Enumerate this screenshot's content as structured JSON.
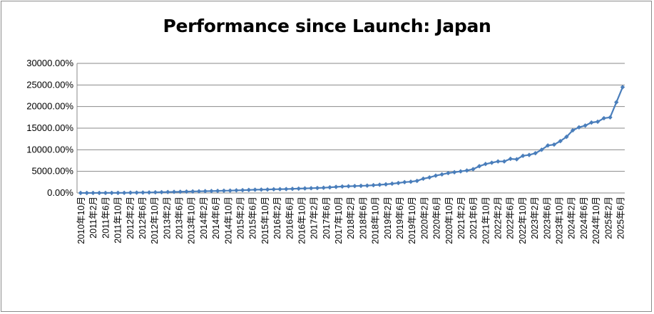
{
  "chart_data": {
    "type": "line",
    "title": "Performance since Launch: Japan",
    "xlabel": "",
    "ylabel": "",
    "ylim": [
      0,
      30000
    ],
    "y_unit": "%",
    "y_ticks": [
      "0.00%",
      "5000.00%",
      "10000.00%",
      "15000.00%",
      "20000.00%",
      "25000.00%",
      "30000.00%"
    ],
    "grid": true,
    "legend": "none",
    "series_color": "#4a7ebb",
    "x_ticks": [
      "2010年10月",
      "2011年2月",
      "2011年6月",
      "2011年10月",
      "2012年2月",
      "2012年6月",
      "2012年10月",
      "2013年2月",
      "2013年6月",
      "2013年10月",
      "2014年2月",
      "2014年6月",
      "2014年10月",
      "2015年2月",
      "2015年6月",
      "2015年10月",
      "2016年2月",
      "2016年6月",
      "2016年10月",
      "2017年2月",
      "2017年6月",
      "2017年10月",
      "2018年2月",
      "2018年6月",
      "2018年10月",
      "2019年2月",
      "2019年6月",
      "2019年10月",
      "2020年2月",
      "2020年6月",
      "2020年10月",
      "2021年2月",
      "2021年6月",
      "2021年10月",
      "2022年2月",
      "2022年6月",
      "2022年10月",
      "2023年2月",
      "2023年6月",
      "2023年10月",
      "2024年2月",
      "2024年6月",
      "2024年10月",
      "2025年2月",
      "2025年6月"
    ],
    "series": [
      {
        "values": [
          0,
          0,
          5,
          10,
          10,
          15,
          20,
          30,
          60,
          80,
          100,
          120,
          150,
          180,
          220,
          250,
          280,
          320,
          350,
          380,
          420,
          450,
          480,
          520,
          550,
          600,
          650,
          700,
          750,
          780,
          800,
          850,
          880,
          900,
          950,
          1000,
          1050,
          1100,
          1150,
          1200,
          1300,
          1400,
          1500,
          1550,
          1600,
          1650,
          1700,
          1800,
          1900,
          2000,
          2150,
          2300,
          2500,
          2600,
          2800,
          3300,
          3600,
          4000,
          4300,
          4600,
          4800,
          5000,
          5200,
          5500,
          6200,
          6700,
          7000,
          7300,
          7300,
          7900,
          7800,
          8600,
          8800,
          9200,
          10000,
          11000,
          11200,
          12000,
          13000,
          14500,
          15200,
          15600,
          16300,
          16500,
          17300,
          17500,
          21000,
          24500
        ]
      }
    ]
  }
}
